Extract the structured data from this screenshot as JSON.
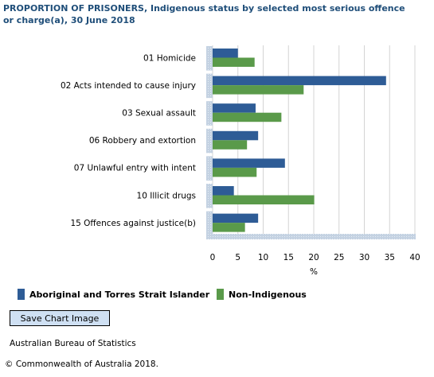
{
  "title_bold": "PROPORTION OF PRISONERS",
  "title_rest": ", Indigenous status by selected most serious offence or charge(a), 30 June 2018",
  "save_button_label": "Save Chart Image",
  "source": "Australian Bureau of Statistics",
  "copyright": "© Commonwealth of Australia 2018.",
  "colors": {
    "series1": "#2e5c96",
    "series2": "#5a9a4a",
    "axis_band": "#c4d2e2"
  },
  "chart_data": {
    "type": "bar",
    "orientation": "horizontal",
    "categories": [
      "01 Homicide",
      "02 Acts intended to cause injury",
      "03 Sexual assault",
      "06 Robbery and extortion",
      "07 Unlawful entry with intent",
      "10 Illicit drugs",
      "15 Offences against justice(b)"
    ],
    "series": [
      {
        "name": "Aboriginal and Torres Strait Islander",
        "values": [
          5.0,
          34.3,
          8.5,
          9.0,
          14.3,
          4.2,
          9.0
        ]
      },
      {
        "name": "Non-Indigenous",
        "values": [
          8.3,
          18.0,
          13.6,
          6.8,
          8.7,
          20.1,
          6.4
        ]
      }
    ],
    "xlabel": "%",
    "xlim": [
      0,
      40
    ],
    "xticks": [
      "0",
      "5",
      "10",
      "15",
      "20",
      "25",
      "30",
      "35",
      "40"
    ],
    "legend_position": "bottom"
  }
}
